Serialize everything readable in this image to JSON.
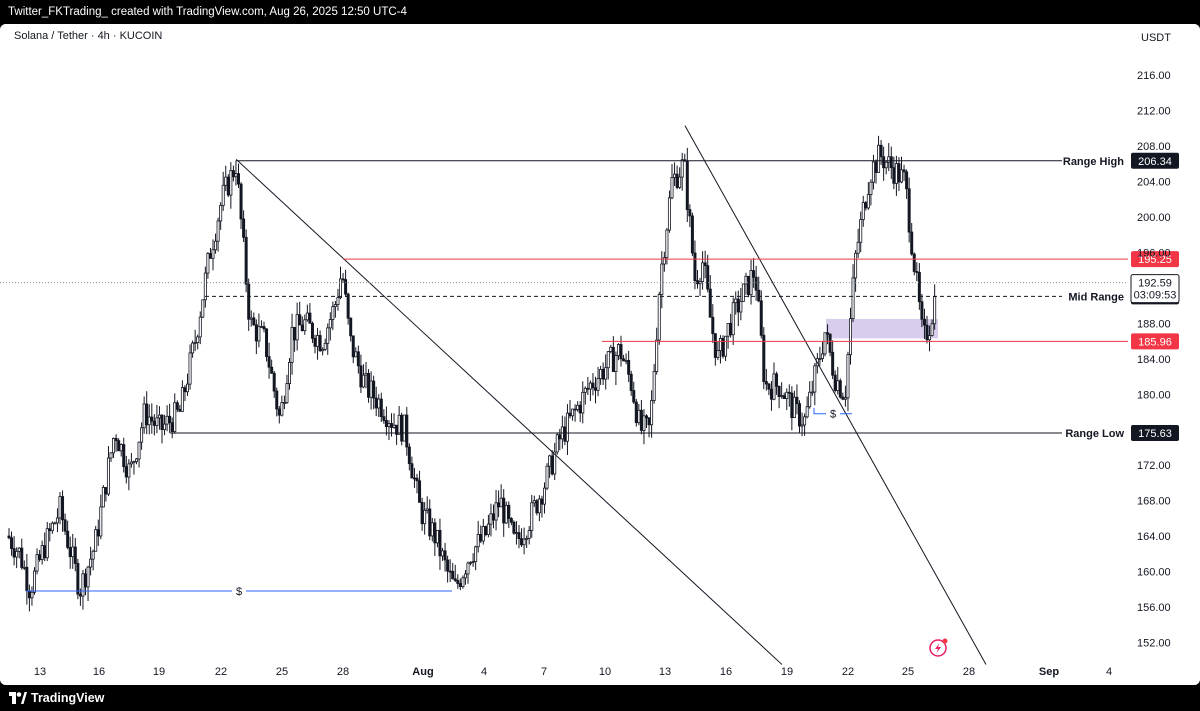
{
  "header": {
    "caption": "Twitter_FKTrading_ created with TradingView.com, Aug 26, 2025 12:50 UTC-4"
  },
  "footer": {
    "brand": "TradingView"
  },
  "chart_data": {
    "type": "candlestick",
    "symbol_title": "Solana / Tether · 4h · KUCOIN",
    "currency": "USDT",
    "ylim": [
      149.5,
      218.5
    ],
    "y_ticks": [
      {
        "v": 216,
        "t": "216.00"
      },
      {
        "v": 212,
        "t": "212.00"
      },
      {
        "v": 208,
        "t": "208.00"
      },
      {
        "v": 204,
        "t": "204.00"
      },
      {
        "v": 200,
        "t": "200.00"
      },
      {
        "v": 196,
        "t": "196.00"
      },
      {
        "v": 188,
        "t": "188.00"
      },
      {
        "v": 184,
        "t": "184.00"
      },
      {
        "v": 180,
        "t": "180.00"
      },
      {
        "v": 172,
        "t": "172.00"
      },
      {
        "v": 168,
        "t": "168.00"
      },
      {
        "v": 164,
        "t": "164.00"
      },
      {
        "v": 160,
        "t": "160.00"
      },
      {
        "v": 156,
        "t": "156.00"
      },
      {
        "v": 152,
        "t": "152.00"
      }
    ],
    "x_ticks": [
      "13",
      "16",
      "19",
      "22",
      "25",
      "28",
      "Aug",
      "4",
      "7",
      "10",
      "13",
      "16",
      "19",
      "22",
      "25",
      "28",
      "Sep",
      "4"
    ],
    "levels": [
      {
        "name": "Range High",
        "value": 206.34,
        "label": "206.34",
        "color": "#131722"
      },
      {
        "name": "",
        "value": 195.25,
        "label": "195.25",
        "color": "#f23645"
      },
      {
        "name": "Mid Range",
        "value": 191.05,
        "label": "191.05",
        "color": "#131722"
      },
      {
        "name": "",
        "value": 185.96,
        "label": "185.96",
        "color": "#f23645"
      },
      {
        "name": "Range Low",
        "value": 175.63,
        "label": "175.63",
        "color": "#131722"
      }
    ],
    "last_price": {
      "label": "192.59",
      "value": 192.59,
      "countdown": "03:09:53"
    },
    "liquidity_markers": [
      {
        "label": "$",
        "value": 157.8
      },
      {
        "label": "$",
        "value": 177.8
      }
    ],
    "supply_zone": {
      "from": 186.3,
      "to": 188.5
    },
    "trendlines": [
      {
        "from": [
          "Jul 22",
          206.5
        ],
        "to": [
          "Aug 18",
          149.5
        ]
      },
      {
        "from": [
          "Aug 13",
          210.3
        ],
        "to": [
          "Aug 28",
          149.5
        ]
      }
    ],
    "candles": [],
    "colors": {
      "up": "#ffffff",
      "down": "#131722",
      "wick": "#131722",
      "zone": "#d1c4e9",
      "liquidity": "#2962ff"
    }
  }
}
